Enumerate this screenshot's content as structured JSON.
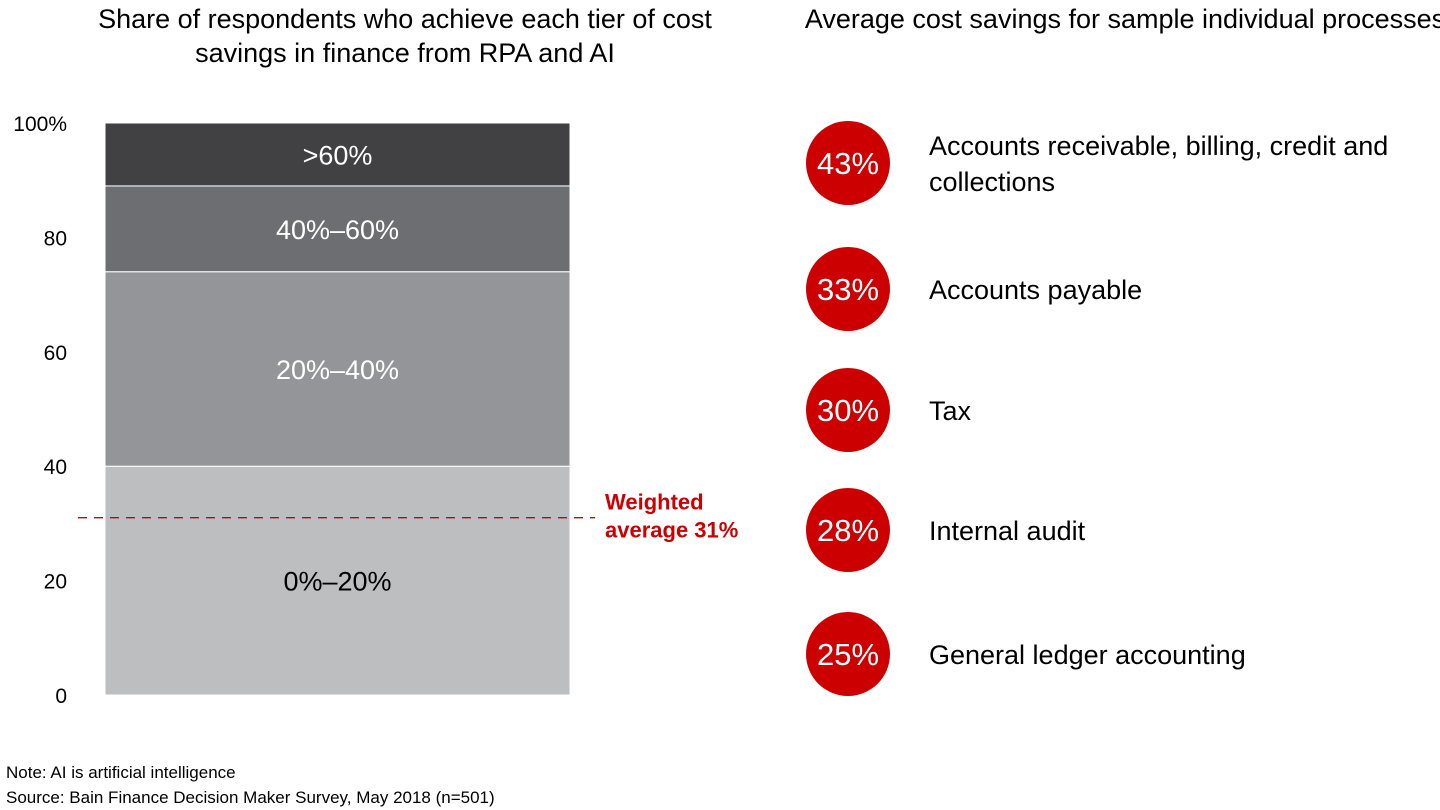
{
  "left_title": "Share of respondents who achieve each tier of cost savings in finance from RPA and AI",
  "right_title": "Average cost savings for sample individual processes",
  "chart_data": [
    {
      "type": "bar",
      "stacked": true,
      "title": "Share of respondents who achieve each tier of cost savings in finance from RPA and AI",
      "ylim": [
        0,
        100
      ],
      "yticks": [
        0,
        20,
        40,
        60,
        80,
        100
      ],
      "ytick_labels": [
        "0",
        "20",
        "40",
        "60",
        "80",
        "100%"
      ],
      "series": [
        {
          "name": "0%–20%",
          "value": 40,
          "color": "#bdbec0",
          "text_color": "#000000"
        },
        {
          "name": "20%–40%",
          "value": 34,
          "color": "#939598",
          "text_color": "#ffffff"
        },
        {
          "name": "40%–60%",
          "value": 15,
          "color": "#6d6e71",
          "text_color": "#ffffff"
        },
        {
          "name": ">60%",
          "value": 11,
          "color": "#414042",
          "text_color": "#ffffff"
        }
      ],
      "reference_line": {
        "value": 31,
        "label_lines": [
          "Weighted",
          "average 31%"
        ],
        "color": "#cc0000",
        "style": "dashed"
      }
    },
    {
      "type": "table",
      "title": "Average cost savings for sample individual processes",
      "badge_color": "#cc0000",
      "rows": [
        {
          "value": "43%",
          "label_lines": [
            "Accounts receivable, billing, credit and",
            "collections"
          ]
        },
        {
          "value": "33%",
          "label_lines": [
            "Accounts payable"
          ]
        },
        {
          "value": "30%",
          "label_lines": [
            "Tax"
          ]
        },
        {
          "value": "28%",
          "label_lines": [
            "Internal audit"
          ]
        },
        {
          "value": "25%",
          "label_lines": [
            "General ledger accounting"
          ]
        }
      ]
    }
  ],
  "footnotes": {
    "note": "Note: AI is artificial intelligence",
    "source": "Source: Bain Finance Decision Maker Survey, May 2018 (n=501)"
  }
}
